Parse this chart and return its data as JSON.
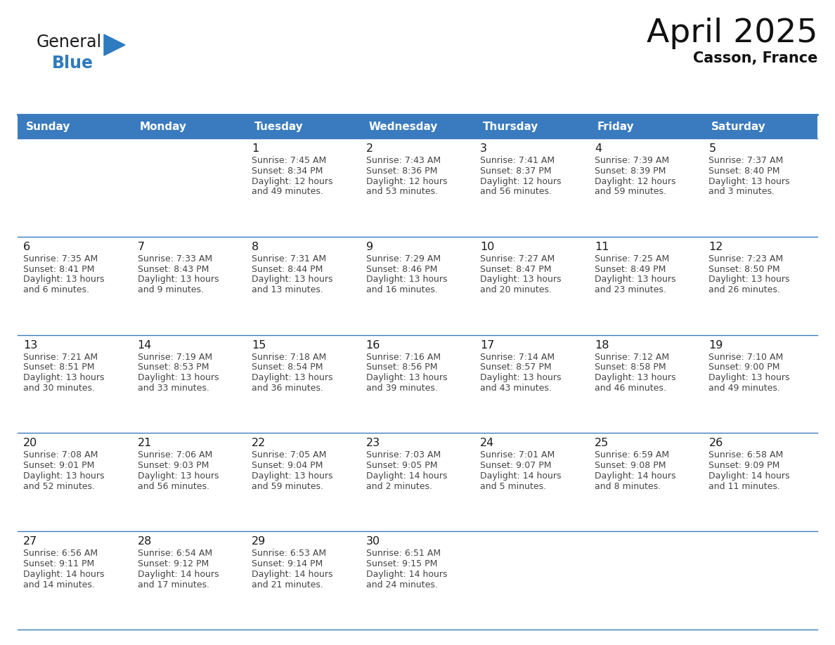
{
  "title": "April 2025",
  "subtitle": "Casson, France",
  "header_bg_color": "#3a7bbf",
  "header_text_color": "#ffffff",
  "cell_bg_color": "#ffffff",
  "day_headers": [
    "Sunday",
    "Monday",
    "Tuesday",
    "Wednesday",
    "Thursday",
    "Friday",
    "Saturday"
  ],
  "grid_line_color": "#3a7bbf",
  "day_number_color": "#1a1a1a",
  "text_color": "#444444",
  "background_color": "#ffffff",
  "calendar_data": [
    [
      {
        "day": "",
        "sunrise": "",
        "sunset": "",
        "daylight": ""
      },
      {
        "day": "",
        "sunrise": "",
        "sunset": "",
        "daylight": ""
      },
      {
        "day": "1",
        "sunrise": "Sunrise: 7:45 AM",
        "sunset": "Sunset: 8:34 PM",
        "daylight": "Daylight: 12 hours\nand 49 minutes."
      },
      {
        "day": "2",
        "sunrise": "Sunrise: 7:43 AM",
        "sunset": "Sunset: 8:36 PM",
        "daylight": "Daylight: 12 hours\nand 53 minutes."
      },
      {
        "day": "3",
        "sunrise": "Sunrise: 7:41 AM",
        "sunset": "Sunset: 8:37 PM",
        "daylight": "Daylight: 12 hours\nand 56 minutes."
      },
      {
        "day": "4",
        "sunrise": "Sunrise: 7:39 AM",
        "sunset": "Sunset: 8:39 PM",
        "daylight": "Daylight: 12 hours\nand 59 minutes."
      },
      {
        "day": "5",
        "sunrise": "Sunrise: 7:37 AM",
        "sunset": "Sunset: 8:40 PM",
        "daylight": "Daylight: 13 hours\nand 3 minutes."
      }
    ],
    [
      {
        "day": "6",
        "sunrise": "Sunrise: 7:35 AM",
        "sunset": "Sunset: 8:41 PM",
        "daylight": "Daylight: 13 hours\nand 6 minutes."
      },
      {
        "day": "7",
        "sunrise": "Sunrise: 7:33 AM",
        "sunset": "Sunset: 8:43 PM",
        "daylight": "Daylight: 13 hours\nand 9 minutes."
      },
      {
        "day": "8",
        "sunrise": "Sunrise: 7:31 AM",
        "sunset": "Sunset: 8:44 PM",
        "daylight": "Daylight: 13 hours\nand 13 minutes."
      },
      {
        "day": "9",
        "sunrise": "Sunrise: 7:29 AM",
        "sunset": "Sunset: 8:46 PM",
        "daylight": "Daylight: 13 hours\nand 16 minutes."
      },
      {
        "day": "10",
        "sunrise": "Sunrise: 7:27 AM",
        "sunset": "Sunset: 8:47 PM",
        "daylight": "Daylight: 13 hours\nand 20 minutes."
      },
      {
        "day": "11",
        "sunrise": "Sunrise: 7:25 AM",
        "sunset": "Sunset: 8:49 PM",
        "daylight": "Daylight: 13 hours\nand 23 minutes."
      },
      {
        "day": "12",
        "sunrise": "Sunrise: 7:23 AM",
        "sunset": "Sunset: 8:50 PM",
        "daylight": "Daylight: 13 hours\nand 26 minutes."
      }
    ],
    [
      {
        "day": "13",
        "sunrise": "Sunrise: 7:21 AM",
        "sunset": "Sunset: 8:51 PM",
        "daylight": "Daylight: 13 hours\nand 30 minutes."
      },
      {
        "day": "14",
        "sunrise": "Sunrise: 7:19 AM",
        "sunset": "Sunset: 8:53 PM",
        "daylight": "Daylight: 13 hours\nand 33 minutes."
      },
      {
        "day": "15",
        "sunrise": "Sunrise: 7:18 AM",
        "sunset": "Sunset: 8:54 PM",
        "daylight": "Daylight: 13 hours\nand 36 minutes."
      },
      {
        "day": "16",
        "sunrise": "Sunrise: 7:16 AM",
        "sunset": "Sunset: 8:56 PM",
        "daylight": "Daylight: 13 hours\nand 39 minutes."
      },
      {
        "day": "17",
        "sunrise": "Sunrise: 7:14 AM",
        "sunset": "Sunset: 8:57 PM",
        "daylight": "Daylight: 13 hours\nand 43 minutes."
      },
      {
        "day": "18",
        "sunrise": "Sunrise: 7:12 AM",
        "sunset": "Sunset: 8:58 PM",
        "daylight": "Daylight: 13 hours\nand 46 minutes."
      },
      {
        "day": "19",
        "sunrise": "Sunrise: 7:10 AM",
        "sunset": "Sunset: 9:00 PM",
        "daylight": "Daylight: 13 hours\nand 49 minutes."
      }
    ],
    [
      {
        "day": "20",
        "sunrise": "Sunrise: 7:08 AM",
        "sunset": "Sunset: 9:01 PM",
        "daylight": "Daylight: 13 hours\nand 52 minutes."
      },
      {
        "day": "21",
        "sunrise": "Sunrise: 7:06 AM",
        "sunset": "Sunset: 9:03 PM",
        "daylight": "Daylight: 13 hours\nand 56 minutes."
      },
      {
        "day": "22",
        "sunrise": "Sunrise: 7:05 AM",
        "sunset": "Sunset: 9:04 PM",
        "daylight": "Daylight: 13 hours\nand 59 minutes."
      },
      {
        "day": "23",
        "sunrise": "Sunrise: 7:03 AM",
        "sunset": "Sunset: 9:05 PM",
        "daylight": "Daylight: 14 hours\nand 2 minutes."
      },
      {
        "day": "24",
        "sunrise": "Sunrise: 7:01 AM",
        "sunset": "Sunset: 9:07 PM",
        "daylight": "Daylight: 14 hours\nand 5 minutes."
      },
      {
        "day": "25",
        "sunrise": "Sunrise: 6:59 AM",
        "sunset": "Sunset: 9:08 PM",
        "daylight": "Daylight: 14 hours\nand 8 minutes."
      },
      {
        "day": "26",
        "sunrise": "Sunrise: 6:58 AM",
        "sunset": "Sunset: 9:09 PM",
        "daylight": "Daylight: 14 hours\nand 11 minutes."
      }
    ],
    [
      {
        "day": "27",
        "sunrise": "Sunrise: 6:56 AM",
        "sunset": "Sunset: 9:11 PM",
        "daylight": "Daylight: 14 hours\nand 14 minutes."
      },
      {
        "day": "28",
        "sunrise": "Sunrise: 6:54 AM",
        "sunset": "Sunset: 9:12 PM",
        "daylight": "Daylight: 14 hours\nand 17 minutes."
      },
      {
        "day": "29",
        "sunrise": "Sunrise: 6:53 AM",
        "sunset": "Sunset: 9:14 PM",
        "daylight": "Daylight: 14 hours\nand 21 minutes."
      },
      {
        "day": "30",
        "sunrise": "Sunrise: 6:51 AM",
        "sunset": "Sunset: 9:15 PM",
        "daylight": "Daylight: 14 hours\nand 24 minutes."
      },
      {
        "day": "",
        "sunrise": "",
        "sunset": "",
        "daylight": ""
      },
      {
        "day": "",
        "sunrise": "",
        "sunset": "",
        "daylight": ""
      },
      {
        "day": "",
        "sunrise": "",
        "sunset": "",
        "daylight": ""
      }
    ]
  ]
}
